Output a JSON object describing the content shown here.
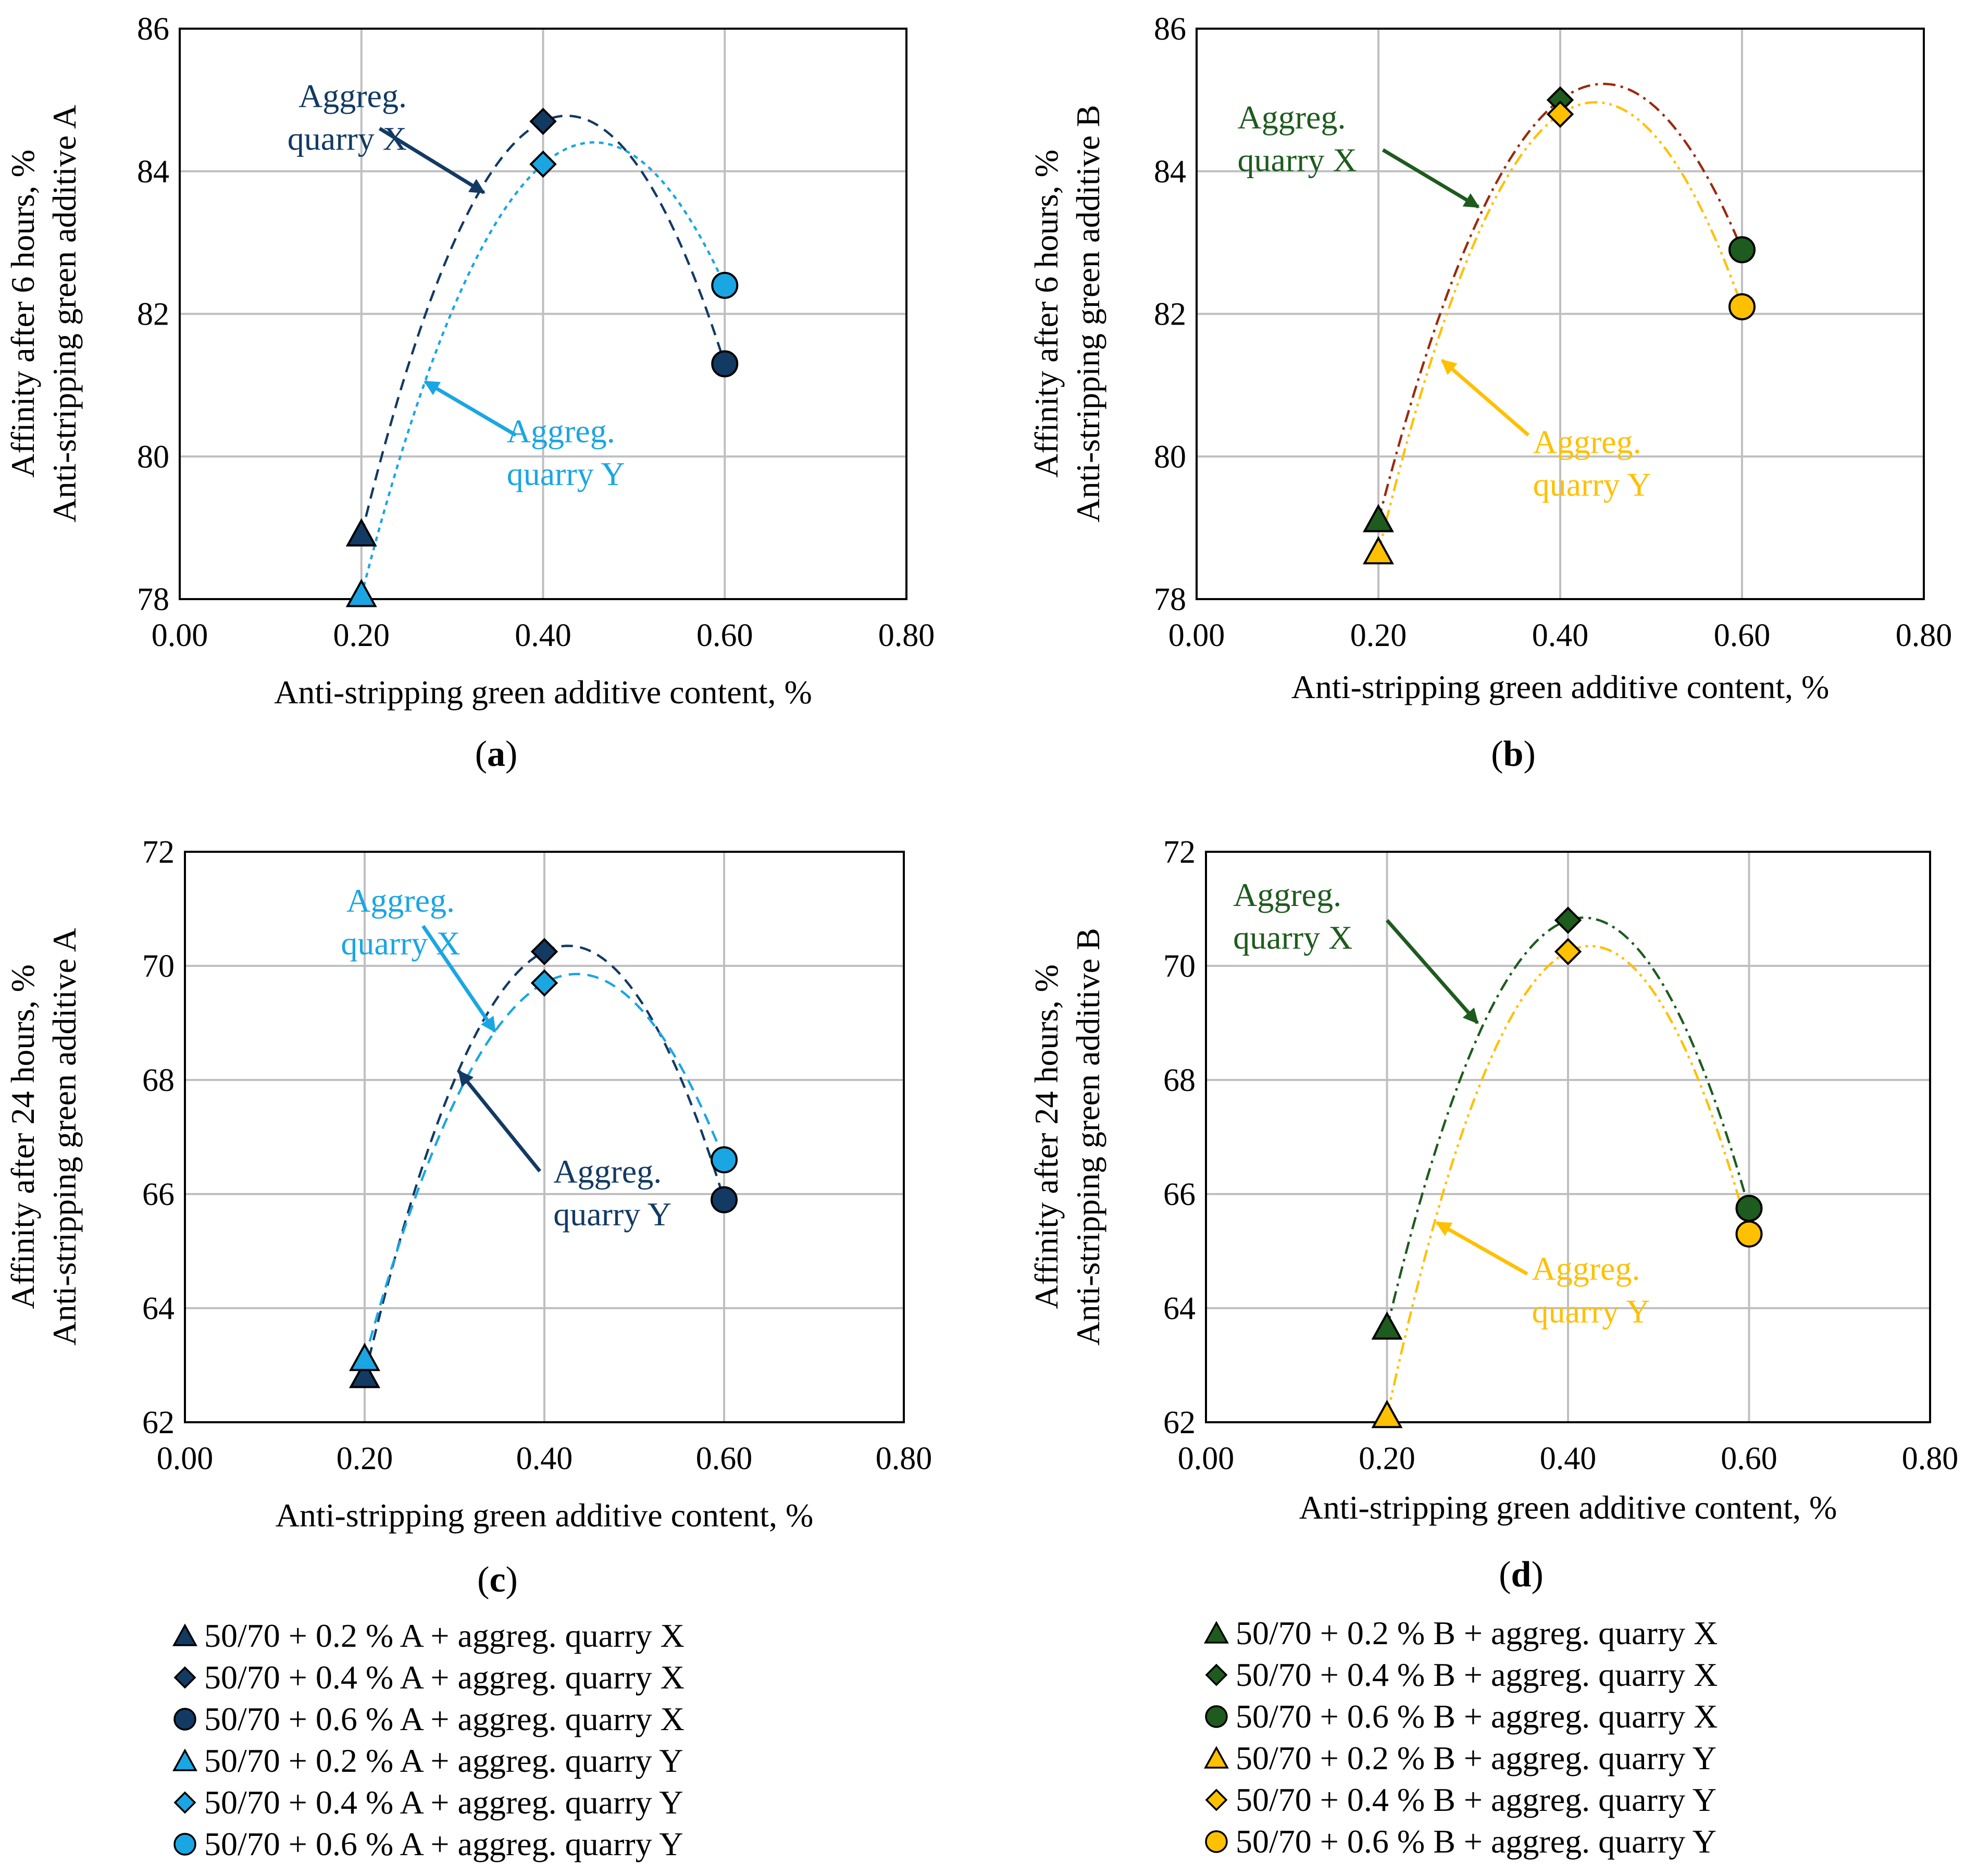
{
  "colors": {
    "navy": "#123a63",
    "light_blue": "#1aa6e3",
    "green": "#1e5b1e",
    "gold": "#ffc000",
    "brown": "#9b2a0e",
    "grid": "#bfbfbf"
  },
  "chart_data": [
    {
      "id": "a",
      "panel_label": "a",
      "type": "scatter",
      "xlabel": "Anti-stripping green additive content, %",
      "ylabel_line1": "Affinity after 6 hours, %",
      "ylabel_line2": "Anti-stripping green additive A",
      "xlim": [
        0,
        0.8
      ],
      "ylim": [
        78,
        86
      ],
      "x_ticks": [
        0,
        0.2,
        0.4,
        0.6,
        0.8
      ],
      "x_tick_labels": [
        "0.00",
        "0.20",
        "0.40",
        "0.60",
        "0.80"
      ],
      "y_ticks": [
        78,
        80,
        82,
        84,
        86
      ],
      "y_tick_labels": [
        "78",
        "80",
        "82",
        "84",
        "86"
      ],
      "grid": true,
      "series": [
        {
          "name": "Aggreg. quarry X",
          "color": "#123a63",
          "x": [
            0.2,
            0.4,
            0.6
          ],
          "y": [
            78.9,
            84.7,
            81.3
          ],
          "markers": [
            "triangle",
            "diamond",
            "circle"
          ],
          "trend": "dashed"
        },
        {
          "name": "Aggreg. quarry Y",
          "color": "#1aa6e3",
          "x": [
            0.2,
            0.4,
            0.6
          ],
          "y": [
            78.05,
            84.1,
            82.4
          ],
          "markers": [
            "triangle",
            "diamond",
            "circle"
          ],
          "trend": "dotted"
        }
      ],
      "annotations": [
        {
          "line1": "Aggreg.",
          "line2": "quarry X",
          "color": "#123a63",
          "text_at": [
            0.25,
            84.9
          ],
          "arrow_from": [
            0.22,
            84.6
          ],
          "arrow_to": [
            0.335,
            83.7
          ],
          "anchor": "end"
        },
        {
          "line1": "Aggreg.",
          "line2": "quarry Y",
          "color": "#1aa6e3",
          "text_at": [
            0.36,
            80.2
          ],
          "arrow_from": [
            0.37,
            80.3
          ],
          "arrow_to": [
            0.27,
            81.05
          ],
          "anchor": "start"
        }
      ]
    },
    {
      "id": "b",
      "panel_label": "b",
      "type": "scatter",
      "xlabel": "Anti-stripping green additive content, %",
      "ylabel_line1": "Affinity after 6 hours, %",
      "ylabel_line2": "Anti-stripping green additive B",
      "xlim": [
        0,
        0.8
      ],
      "ylim": [
        78,
        86
      ],
      "x_ticks": [
        0,
        0.2,
        0.4,
        0.6,
        0.8
      ],
      "x_tick_labels": [
        "0.00",
        "0.20",
        "0.40",
        "0.60",
        "0.80"
      ],
      "y_ticks": [
        78,
        80,
        82,
        84,
        86
      ],
      "y_tick_labels": [
        "78",
        "80",
        "82",
        "84",
        "86"
      ],
      "grid": true,
      "series": [
        {
          "name": "Aggreg. quarry X",
          "color": "#1e5b1e",
          "trend_color": "#9b2a0e",
          "x": [
            0.2,
            0.4,
            0.6
          ],
          "y": [
            79.1,
            85.0,
            82.9
          ],
          "markers": [
            "triangle",
            "diamond",
            "circle"
          ],
          "trend": "dashdot"
        },
        {
          "name": "Aggreg. quarry Y",
          "color": "#ffc000",
          "x": [
            0.2,
            0.4,
            0.6
          ],
          "y": [
            78.65,
            84.8,
            82.1
          ],
          "markers": [
            "triangle",
            "diamond",
            "circle"
          ],
          "trend": "dashdotdot"
        }
      ],
      "annotations": [
        {
          "line1": "Aggreg.",
          "line2": "quarry X",
          "color": "#1e5b1e",
          "text_at": [
            0.045,
            84.6
          ],
          "arrow_from": [
            0.205,
            84.3
          ],
          "arrow_to": [
            0.31,
            83.5
          ],
          "anchor": "start"
        },
        {
          "line1": "Aggreg.",
          "line2": "quarry Y",
          "color": "#ffc000",
          "text_at": [
            0.37,
            80.05
          ],
          "arrow_from": [
            0.365,
            80.3
          ],
          "arrow_to": [
            0.27,
            81.35
          ],
          "anchor": "start"
        }
      ]
    },
    {
      "id": "c",
      "panel_label": "c",
      "type": "scatter",
      "xlabel": "Anti-stripping green additive content, %",
      "ylabel_line1": "Affinity after 24 hours, %",
      "ylabel_line2": "Anti-stripping green additive A",
      "xlim": [
        0,
        0.8
      ],
      "ylim": [
        62,
        72
      ],
      "x_ticks": [
        0,
        0.2,
        0.4,
        0.6,
        0.8
      ],
      "x_tick_labels": [
        "0.00",
        "0.20",
        "0.40",
        "0.60",
        "0.80"
      ],
      "y_ticks": [
        62,
        64,
        66,
        68,
        70,
        72
      ],
      "y_tick_labels": [
        "62",
        "64",
        "66",
        "68",
        "70",
        "72"
      ],
      "grid": true,
      "series": [
        {
          "name": "Aggreg. quarry X",
          "color": "#123a63",
          "x": [
            0.2,
            0.4,
            0.6
          ],
          "y": [
            62.8,
            70.25,
            65.9
          ],
          "markers": [
            "triangle",
            "diamond",
            "circle"
          ],
          "trend": "dashed"
        },
        {
          "name": "Aggreg. quarry Y",
          "color": "#1aa6e3",
          "x": [
            0.2,
            0.4,
            0.6
          ],
          "y": [
            63.1,
            69.7,
            66.6
          ],
          "markers": [
            "triangle",
            "diamond",
            "circle"
          ],
          "trend": "dashed"
        }
      ],
      "annotations": [
        {
          "line1": "Aggreg.",
          "line2": "quarry X",
          "color": "#1aa6e3",
          "text_at": [
            0.24,
            70.95
          ],
          "arrow_from": [
            0.265,
            70.7
          ],
          "arrow_to": [
            0.345,
            68.85
          ],
          "anchor": "middle"
        },
        {
          "line1": "Aggreg.",
          "line2": "quarry Y",
          "color": "#123a63",
          "text_at": [
            0.41,
            66.2
          ],
          "arrow_from": [
            0.395,
            66.4
          ],
          "arrow_to": [
            0.305,
            68.15
          ],
          "anchor": "start"
        }
      ]
    },
    {
      "id": "d",
      "panel_label": "d",
      "type": "scatter",
      "xlabel": "Anti-stripping green additive content, %",
      "ylabel_line1": "Affinity after 24 hours, %",
      "ylabel_line2": "Anti-stripping green additive B",
      "xlim": [
        0,
        0.8
      ],
      "ylim": [
        62,
        72
      ],
      "x_ticks": [
        0,
        0.2,
        0.4,
        0.6,
        0.8
      ],
      "x_tick_labels": [
        "0.00",
        "0.20",
        "0.40",
        "0.60",
        "0.80"
      ],
      "y_ticks": [
        62,
        64,
        66,
        68,
        70,
        72
      ],
      "y_tick_labels": [
        "62",
        "64",
        "66",
        "68",
        "70",
        "72"
      ],
      "grid": true,
      "series": [
        {
          "name": "Aggreg. quarry X",
          "color": "#1e5b1e",
          "x": [
            0.2,
            0.4,
            0.6
          ],
          "y": [
            63.65,
            70.8,
            65.75
          ],
          "markers": [
            "triangle",
            "diamond",
            "circle"
          ],
          "trend": "dashdot"
        },
        {
          "name": "Aggreg. quarry Y",
          "color": "#ffc000",
          "x": [
            0.2,
            0.4,
            0.6
          ],
          "y": [
            62.1,
            70.25,
            65.3
          ],
          "markers": [
            "triangle",
            "diamond",
            "circle"
          ],
          "trend": "dashdotdot"
        }
      ],
      "annotations": [
        {
          "line1": "Aggreg.",
          "line2": "quarry X",
          "color": "#1e5b1e",
          "text_at": [
            0.03,
            71.05
          ],
          "arrow_from": [
            0.2,
            70.8
          ],
          "arrow_to": [
            0.3,
            69.0
          ],
          "anchor": "start"
        },
        {
          "line1": "Aggreg.",
          "line2": "quarry Y",
          "color": "#ffc000",
          "text_at": [
            0.36,
            64.5
          ],
          "arrow_from": [
            0.355,
            64.6
          ],
          "arrow_to": [
            0.255,
            65.5
          ],
          "anchor": "start"
        }
      ]
    }
  ],
  "legends": {
    "left": [
      {
        "marker": "triangle",
        "color": "#123a63",
        "label": "50/70 + 0.2 % A + aggreg. quarry X"
      },
      {
        "marker": "diamond",
        "color": "#123a63",
        "label": "50/70 + 0.4 % A + aggreg. quarry X"
      },
      {
        "marker": "circle",
        "color": "#123a63",
        "label": "50/70 + 0.6 % A + aggreg. quarry X"
      },
      {
        "marker": "triangle",
        "color": "#1aa6e3",
        "label": "50/70 + 0.2 % A + aggreg. quarry Y"
      },
      {
        "marker": "diamond",
        "color": "#1aa6e3",
        "label": "50/70 + 0.4 % A + aggreg. quarry Y"
      },
      {
        "marker": "circle",
        "color": "#1aa6e3",
        "label": "50/70 + 0.6 % A + aggreg. quarry Y"
      }
    ],
    "right": [
      {
        "marker": "triangle",
        "color": "#1e5b1e",
        "label": "50/70 + 0.2 % B + aggreg. quarry X"
      },
      {
        "marker": "diamond",
        "color": "#1e5b1e",
        "label": "50/70 + 0.4 % B + aggreg. quarry X"
      },
      {
        "marker": "circle",
        "color": "#1e5b1e",
        "label": "50/70 + 0.6 % B + aggreg. quarry X"
      },
      {
        "marker": "triangle",
        "color": "#ffc000",
        "label": "50/70 + 0.2 % B + aggreg. quarry Y"
      },
      {
        "marker": "diamond",
        "color": "#ffc000",
        "label": "50/70 + 0.4 % B + aggreg. quarry Y"
      },
      {
        "marker": "circle",
        "color": "#ffc000",
        "label": "50/70 + 0.6 % B + aggreg. quarry Y"
      }
    ]
  }
}
